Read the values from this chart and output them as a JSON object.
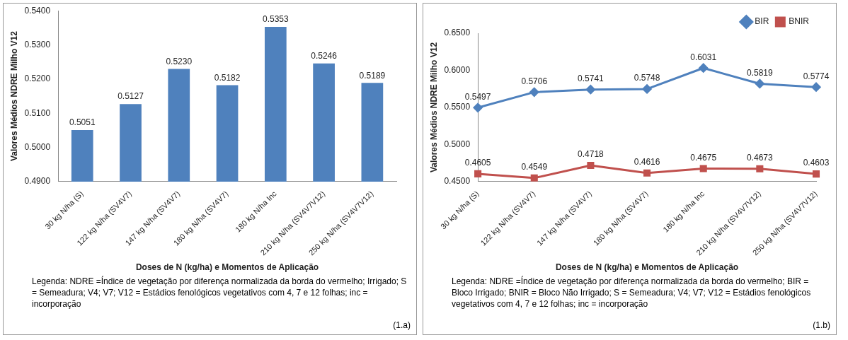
{
  "chart_data": [
    {
      "type": "bar",
      "xlabel": "Doses de N (kg/ha) e Momentos de Aplicação",
      "ylabel": "Valores Médios NDRE Milho V12",
      "categories": [
        "30 kg N/ha (S)",
        "122 kg N/ha (SV4V7)",
        "147 kg N/ha (SV4V7)",
        "180 kg N/ha (SV4V7)",
        "180 kg N/ha Inc",
        "210 kg N/ha (SV4V7V12)",
        "250 kg N/ha (SV4V7V12)"
      ],
      "series": [
        {
          "color": "#4f81bd",
          "values": [
            0.5051,
            0.5127,
            0.523,
            0.5182,
            0.5353,
            0.5246,
            0.5189
          ],
          "value_labels": [
            "0.5051",
            "0.5127",
            "0.5230",
            "0.5182",
            "0.5353",
            "0.5246",
            "0.5189"
          ]
        }
      ],
      "ylim": [
        0.49,
        0.54
      ],
      "yticks": [
        {
          "value": 0.49,
          "label": "0.4900"
        },
        {
          "value": 0.5,
          "label": "0.5000"
        },
        {
          "value": 0.51,
          "label": "0.5100"
        },
        {
          "value": 0.52,
          "label": "0.5200"
        },
        {
          "value": 0.53,
          "label": "0.5300"
        },
        {
          "value": 0.54,
          "label": "0.5400"
        }
      ],
      "grid": false,
      "legend": false,
      "annotations": [
        "Legenda: NDRE =Índice de vegetação por diferença normalizada da borda do vermelho; Irrigado; S = Semeadura; V4; V7; V12 = Estádios fenológicos vegetativos com 4, 7 e 12 folhas; inc = incorporação",
        "(1.a)"
      ]
    },
    {
      "type": "line",
      "xlabel": "Doses de N (kg/ha) e Momentos de Aplicação",
      "ylabel": "Valores Médios NDRE Milho V12",
      "categories": [
        "30 kg N/ha (S)",
        "122 kg N/ha (SV4V7)",
        "147 kg N/ha (SV4V7)",
        "180 kg N/ha (SV4V7)",
        "180 kg N/ha Inc",
        "210 kg N/ha (SV4V7V12)",
        "250 kg N/ha (SV4V7V12)"
      ],
      "series": [
        {
          "name": "BIR",
          "color": "#4f81bd",
          "marker": "diamond",
          "values": [
            0.5497,
            0.5706,
            0.5741,
            0.5748,
            0.6031,
            0.5819,
            0.5774
          ],
          "value_labels": [
            "0.5497",
            "0.5706",
            "0.5741",
            "0.5748",
            "0.6031",
            "0.5819",
            "0.5774"
          ]
        },
        {
          "name": "BNIR",
          "color": "#c0504d",
          "marker": "square",
          "values": [
            0.4605,
            0.4549,
            0.4718,
            0.4616,
            0.4675,
            0.4673,
            0.4603
          ],
          "value_labels": [
            "0.4605",
            "0.4549",
            "0.4718",
            "0.4616",
            "0.4675",
            "0.4673",
            "0.4603"
          ]
        }
      ],
      "ylim": [
        0.45,
        0.65
      ],
      "yticks": [
        {
          "value": 0.45,
          "label": "0.4500"
        },
        {
          "value": 0.5,
          "label": "0.5000"
        },
        {
          "value": 0.55,
          "label": "0.5500"
        },
        {
          "value": 0.6,
          "label": "0.6000"
        },
        {
          "value": 0.65,
          "label": "0.6500"
        }
      ],
      "grid": false,
      "legend": "top right",
      "line_style": "solid",
      "annotations": [
        "Legenda: NDRE =Índice de vegetação por diferença normalizada da borda do vermelho; BIR = Bloco Irrigado; BNIR = Bloco Não Irrigado; S = Semeadura; V4; V7; V12 = Estádios fenológicos vegetativos com 4, 7 e 12 folhas; inc = incorporação",
        "(1.b)"
      ]
    }
  ]
}
